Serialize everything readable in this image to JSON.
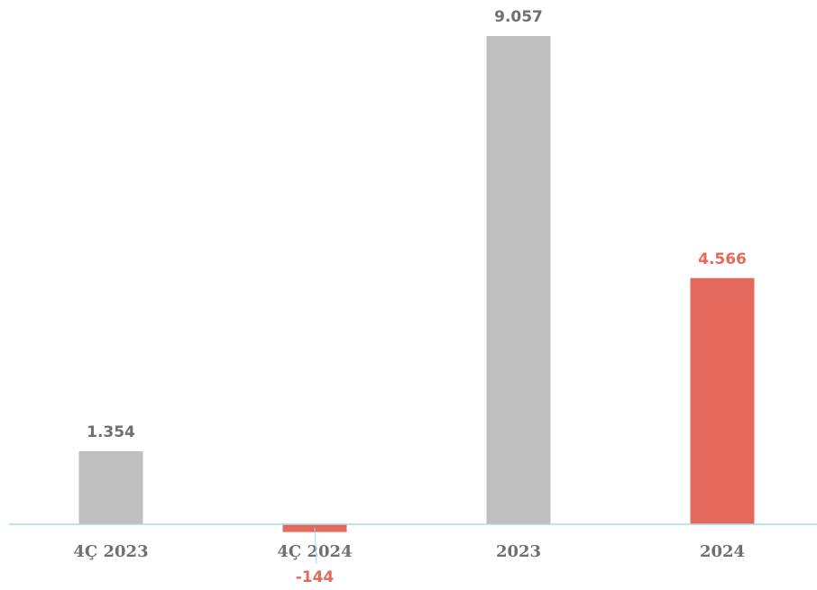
{
  "chart_data": {
    "type": "bar",
    "categories": [
      "4Ç 2023",
      "4Ç 2024",
      "2023",
      "2024"
    ],
    "values": [
      1354,
      -144,
      9057,
      4566
    ],
    "value_labels": [
      "1.354",
      "-144",
      "9.057",
      "4.566"
    ],
    "bar_colors": [
      "#bfbfbf",
      "#e5695a",
      "#bfbfbf",
      "#e5695a"
    ],
    "label_colors": [
      "#6f6f6f",
      "#e5695a",
      "#6f6f6f",
      "#e5695a"
    ],
    "axis_color": "#a6dce6",
    "grid": false,
    "legend": "none",
    "title": "",
    "xlabel": "",
    "ylabel": ""
  }
}
